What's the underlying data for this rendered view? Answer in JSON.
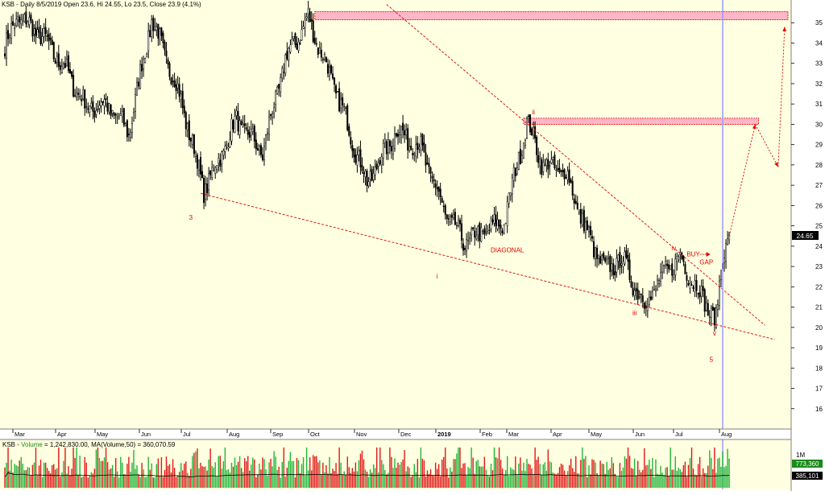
{
  "header": {
    "title": "KSB - Daily 8/5/2019 Open 23.6, Hi 24.55, Lo 23.5, Close 23.9 (4.1%)"
  },
  "volume_header": {
    "prefix": "KSB - ",
    "volume_word": "Volume",
    "rest": " = 1,242,830.00, MA(Volume,50) = 360,070.59"
  },
  "colors": {
    "background": "#ffffe1",
    "candle": "#000000",
    "annotation_red": "#e00000",
    "zone_fill": "#ffb6c8",
    "cursor_line": "#9a9aff",
    "volume_up": "#22b43a",
    "volume_down": "#e01818",
    "price_badge": "#000000",
    "volume_badge": "#1a8a1a"
  },
  "price_badge": "24.65",
  "volume_labels": {
    "scale": "1M",
    "current": "773,360",
    "ma": "385,101"
  },
  "chart_data": {
    "type": "candlestick",
    "ylim": [
      15,
      36
    ],
    "yticks": [
      16,
      17,
      18,
      19,
      20,
      21,
      22,
      23,
      24,
      25,
      26,
      27,
      28,
      29,
      30,
      31,
      32,
      33,
      34,
      35
    ],
    "x_labels": [
      "Mar",
      "Apr",
      "May",
      "Jun",
      "Jul",
      "Aug",
      "Sep",
      "Oct",
      "Nov",
      "Dec",
      "2019",
      "Feb",
      "Mar",
      "Apr",
      "May",
      "Jun",
      "Jul",
      "Aug"
    ],
    "last_close": 24.65,
    "anchors": [
      {
        "t": 0,
        "p": 33.8
      },
      {
        "t": 8,
        "p": 35.3
      },
      {
        "t": 22,
        "p": 34.4
      },
      {
        "t": 38,
        "p": 32.6
      },
      {
        "t": 50,
        "p": 30.8
      },
      {
        "t": 62,
        "p": 31.0
      },
      {
        "t": 76,
        "p": 29.6
      },
      {
        "t": 90,
        "p": 35.2
      },
      {
        "t": 108,
        "p": 31.2
      },
      {
        "t": 122,
        "p": 26.8
      },
      {
        "t": 128,
        "p": 27.7
      },
      {
        "t": 142,
        "p": 30.2
      },
      {
        "t": 158,
        "p": 28.6
      },
      {
        "t": 172,
        "p": 33.2
      },
      {
        "t": 186,
        "p": 35.2
      },
      {
        "t": 204,
        "p": 31.4
      },
      {
        "t": 222,
        "p": 27.1
      },
      {
        "t": 240,
        "p": 29.7
      },
      {
        "t": 255,
        "p": 28.8
      },
      {
        "t": 270,
        "p": 25.6
      },
      {
        "t": 282,
        "p": 24.2
      },
      {
        "t": 296,
        "p": 24.8
      },
      {
        "t": 306,
        "p": 25.2
      },
      {
        "t": 320,
        "p": 30.1
      },
      {
        "t": 330,
        "p": 28.0
      },
      {
        "t": 344,
        "p": 27.6
      },
      {
        "t": 356,
        "p": 24.8
      },
      {
        "t": 368,
        "p": 22.8
      },
      {
        "t": 378,
        "p": 23.4
      },
      {
        "t": 392,
        "p": 21.1
      },
      {
        "t": 406,
        "p": 22.9
      },
      {
        "t": 414,
        "p": 23.4
      },
      {
        "t": 426,
        "p": 21.7
      },
      {
        "t": 436,
        "p": 20.3
      },
      {
        "t": 440,
        "p": 23.6
      },
      {
        "t": 444,
        "p": 24.65
      }
    ],
    "zones": [
      {
        "from_t": 190,
        "to_t": 480,
        "low": 35.15,
        "high": 35.55
      },
      {
        "from_t": 318,
        "to_t": 462,
        "low": 30.0,
        "high": 30.3
      }
    ],
    "trendlines": [
      {
        "t1": 120,
        "p1": 26.6,
        "t2": 472,
        "p2": 19.4
      },
      {
        "t1": 234,
        "p1": 35.9,
        "t2": 466,
        "p2": 20.1
      }
    ],
    "projection_path": [
      {
        "t": 444,
        "p": 24.5
      },
      {
        "t": 460,
        "p": 30.0
      },
      {
        "t": 474,
        "p": 27.9
      },
      {
        "t": 478,
        "p": 34.8
      }
    ],
    "cursor_t": 440,
    "annotations": [
      {
        "text": "3",
        "t": 114,
        "p": 25.3
      },
      {
        "text": "i",
        "t": 265,
        "p": 22.4
      },
      {
        "text": "ii",
        "t": 324,
        "p": 30.5
      },
      {
        "text": "DIAGONAL",
        "t": 308,
        "p": 23.7
      },
      {
        "text": "iii",
        "t": 386,
        "p": 20.6
      },
      {
        "text": "iv",
        "t": 410,
        "p": 23.8
      },
      {
        "text": "BUY",
        "t": 422,
        "p": 23.5
      },
      {
        "text": "GAP",
        "t": 430,
        "p": 23.1
      },
      {
        "text": "v",
        "t": 435,
        "p": 19.6
      },
      {
        "text": "5",
        "t": 433,
        "p": 18.3
      }
    ]
  }
}
